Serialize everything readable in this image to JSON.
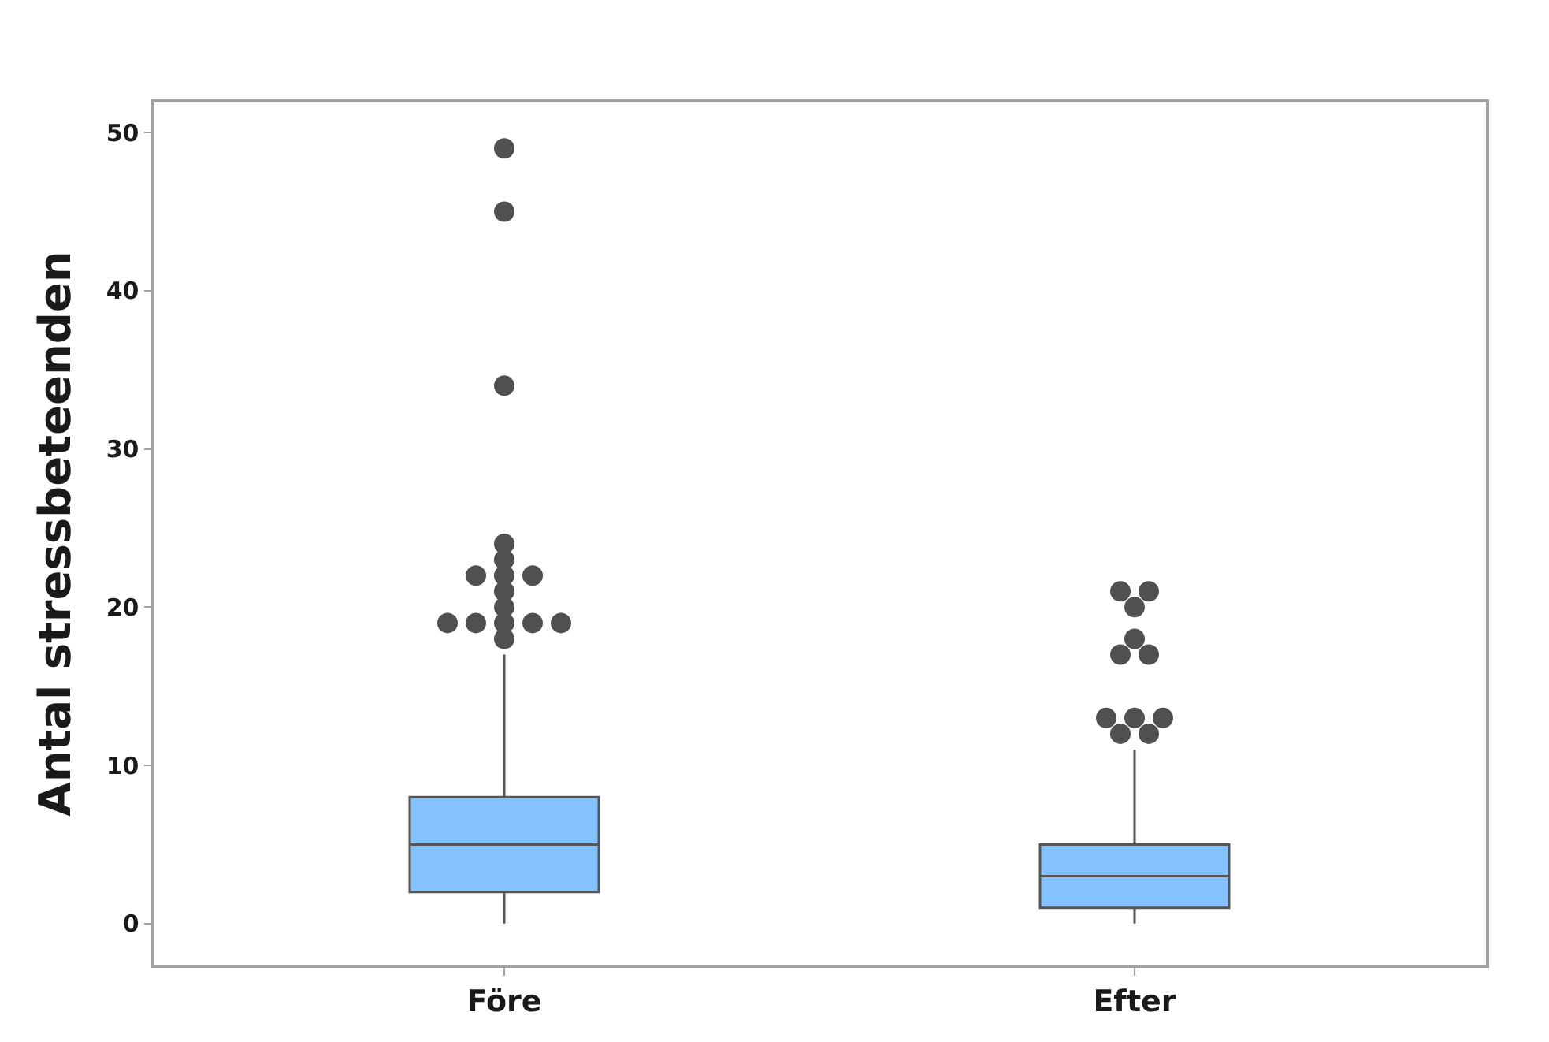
{
  "chart_data": {
    "type": "box",
    "ylabel": "Antal stressbeteenden",
    "categories": [
      "Före",
      "Efter"
    ],
    "series": [
      {
        "color": "#84c1ff",
        "boxes": [
          {
            "low": 0,
            "q1": 2,
            "median": 5,
            "q3": 8,
            "high": 17,
            "outliers": [
              49,
              45,
              34,
              24,
              23,
              22,
              22,
              22,
              21,
              20,
              19,
              19,
              19,
              19,
              19,
              18
            ]
          },
          {
            "low": 0,
            "q1": 1,
            "median": 3,
            "q3": 5,
            "high": 11,
            "outliers": [
              21,
              21,
              20,
              18,
              17,
              17,
              13,
              13,
              13,
              12,
              12
            ]
          }
        ]
      }
    ],
    "ylim": [
      -2.6,
      51.9
    ],
    "yticks": [
      0,
      10,
      20,
      30,
      40,
      50
    ]
  }
}
